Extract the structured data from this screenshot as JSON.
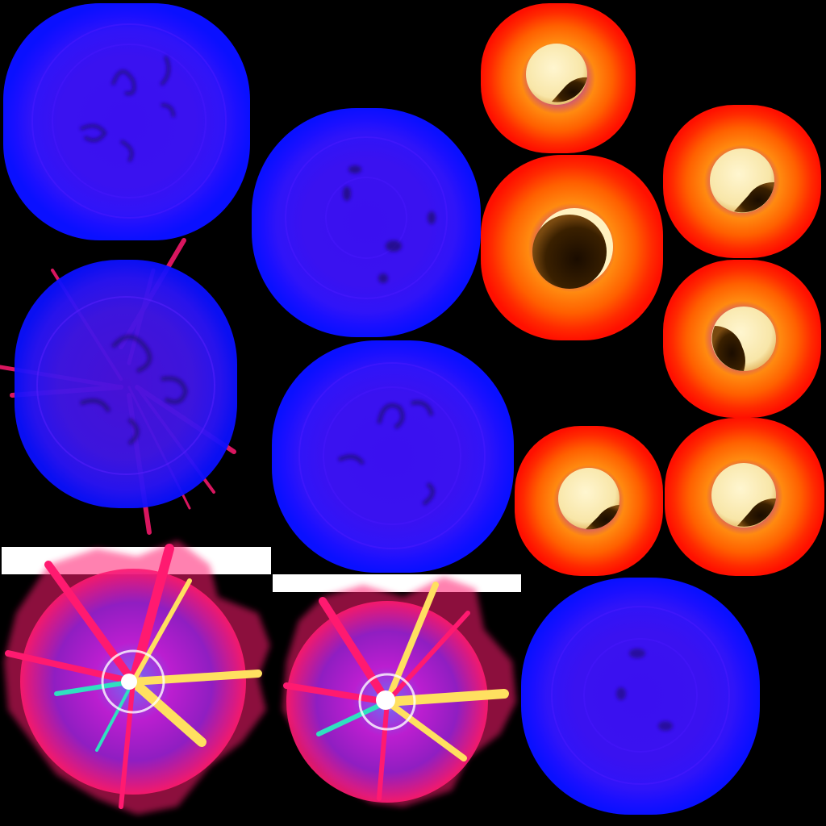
{
  "sheet": {
    "background": "#000000",
    "kind": "sprite-atlas",
    "sprites": [
      {
        "name": "blue-orb-large",
        "type": "blue-orb"
      },
      {
        "name": "blue-orb-medium",
        "type": "blue-orb"
      },
      {
        "name": "blue-orb-spiked",
        "type": "blue-orb-spiked"
      },
      {
        "name": "blue-orb-center",
        "type": "blue-orb"
      },
      {
        "name": "blue-orb-bottom-right",
        "type": "blue-orb"
      },
      {
        "name": "sun-glow-eclipse-1",
        "type": "sun-glow",
        "eclipse_fraction": 0.35
      },
      {
        "name": "sun-glow-total-eclipse",
        "type": "sun-glow",
        "eclipse_fraction": 0.92
      },
      {
        "name": "sun-glow-eclipse-2",
        "type": "sun-glow",
        "eclipse_fraction": 0.35
      },
      {
        "name": "sun-glow-eclipse-3",
        "type": "sun-glow",
        "eclipse_fraction": 0.55
      },
      {
        "name": "sun-glow-eclipse-4",
        "type": "sun-glow",
        "eclipse_fraction": 0.3
      },
      {
        "name": "sun-glow-eclipse-5",
        "type": "sun-glow",
        "eclipse_fraction": 0.35
      },
      {
        "name": "burst-explosion-left",
        "type": "burst"
      },
      {
        "name": "burst-explosion-right",
        "type": "burst"
      },
      {
        "name": "white-strip-left",
        "type": "strip"
      },
      {
        "name": "white-strip-right",
        "type": "strip"
      }
    ]
  },
  "colors": {
    "orb_edge": "#0a10ff",
    "orb_core": "#3a12f0",
    "orb_ring": "#4a1aff",
    "orb_smoke": "#1a0a6a",
    "sun_outer": "#ff1a00",
    "sun_mid": "#ff6a00",
    "sun_inner": "#ff9a10",
    "sun_halo": "#a040c0",
    "sun_disk": "#fff2c0",
    "eclipse_shadow": "#3a2000",
    "burst_pink": "#ff1a70",
    "burst_magenta": "#c020e0",
    "burst_yellow": "#ffe060",
    "burst_cyan": "#30e0c0",
    "strip": "#ffffff"
  }
}
